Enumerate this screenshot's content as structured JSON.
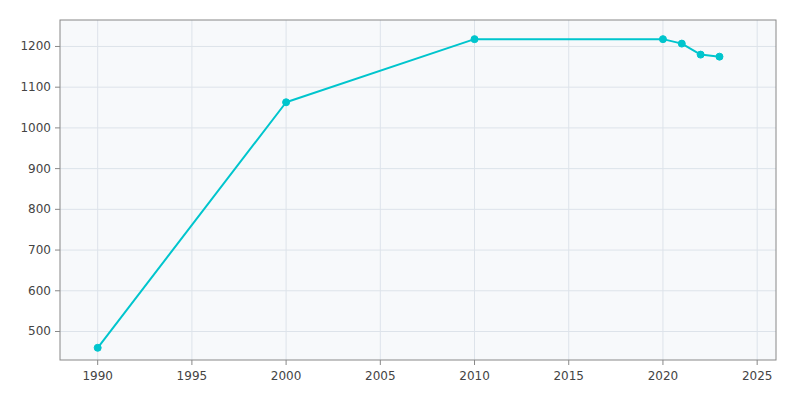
{
  "chart_data": {
    "type": "line",
    "x": [
      1990,
      2000,
      2010,
      2020,
      2021,
      2022,
      2023
    ],
    "values": [
      460,
      1063,
      1218,
      1218,
      1207,
      1180,
      1175
    ],
    "color": "#00C5CD",
    "marker": "circle",
    "xlim": [
      1988,
      2026
    ],
    "ylim": [
      430,
      1265
    ],
    "xticks": [
      1990,
      1995,
      2000,
      2005,
      2010,
      2015,
      2020,
      2025
    ],
    "yticks": [
      500,
      600,
      700,
      800,
      900,
      1000,
      1100,
      1200
    ],
    "grid": true
  }
}
